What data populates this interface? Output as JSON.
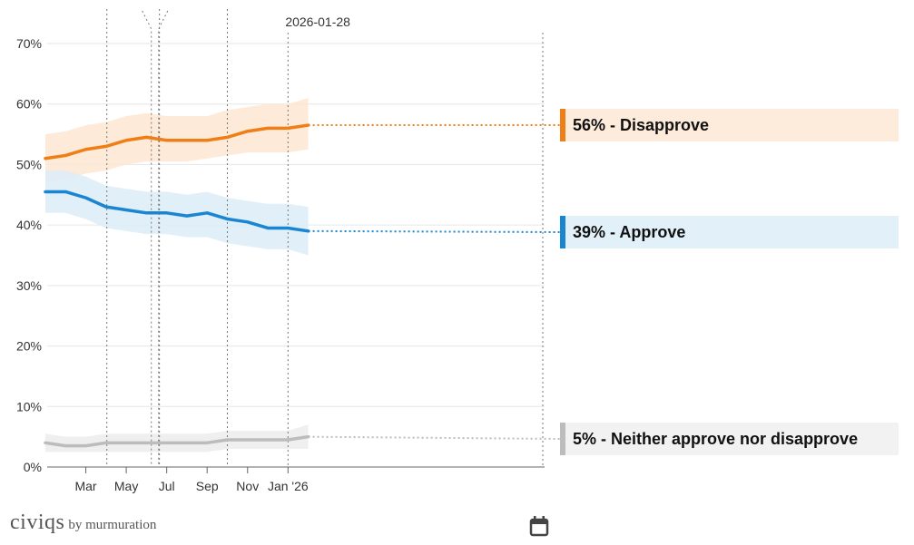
{
  "chart_data": {
    "type": "line",
    "title": "",
    "xlabel": "",
    "ylabel": "",
    "ylim": [
      0,
      70
    ],
    "yticks": [
      0,
      10,
      20,
      30,
      40,
      50,
      60,
      70
    ],
    "ytick_labels": [
      "0%",
      "10%",
      "20%",
      "30%",
      "40%",
      "50%",
      "60%",
      "70%"
    ],
    "xlim": [
      0,
      12.3
    ],
    "xticks": [
      {
        "pos": 1.0,
        "label": "Mar"
      },
      {
        "pos": 2.0,
        "label": "May"
      },
      {
        "pos": 3.0,
        "label": "Jul"
      },
      {
        "pos": 4.0,
        "label": "Sep"
      },
      {
        "pos": 5.0,
        "label": "Nov"
      },
      {
        "pos": 6.0,
        "label": "Jan '26"
      }
    ],
    "x_unit_note": "x positions are months since Feb 2025 divided by 2",
    "event_lines": [
      1.52,
      2.82,
      4.5
    ],
    "event_bracket": [
      2.62,
      2.8
    ],
    "current_date": {
      "pos": 6.0,
      "label": "2026-01-28"
    },
    "x": [
      0.0,
      0.5,
      1.0,
      1.5,
      2.0,
      2.5,
      3.0,
      3.5,
      4.0,
      4.5,
      5.0,
      5.5,
      6.0,
      6.5
    ],
    "series": [
      {
        "name": "Disapprove",
        "color": "#f07e16",
        "band_color": "#fde6d2",
        "values": [
          51,
          51.5,
          52.5,
          53,
          54,
          54.5,
          54,
          54,
          54,
          54.5,
          55.5,
          56,
          56,
          56.5
        ],
        "band_lower": [
          47,
          47.5,
          48.5,
          49,
          50,
          50.5,
          50.5,
          50.5,
          51,
          51.5,
          52,
          52,
          52,
          52.5
        ],
        "band_upper": [
          55,
          55.5,
          56.5,
          57,
          58,
          58.5,
          58,
          58,
          58,
          59,
          59.5,
          60,
          60,
          61
        ],
        "end_label": "56% - Disapprove"
      },
      {
        "name": "Approve",
        "color": "#1a85d1",
        "values": [
          45.5,
          45.5,
          44.5,
          43,
          42.5,
          42,
          42,
          41.5,
          42,
          41,
          40.5,
          39.5,
          39.5,
          39
        ],
        "band_lower": [
          42,
          42,
          41,
          39.5,
          39,
          38.5,
          38.5,
          38,
          38,
          37,
          36.5,
          36,
          36,
          35
        ],
        "band_upper": [
          49,
          49,
          48,
          46.5,
          46,
          45.5,
          45.5,
          45,
          45.5,
          44.5,
          44,
          43.5,
          43.5,
          43
        ],
        "band_color": "#dcecf8",
        "end_label": "39% - Approve"
      },
      {
        "name": "Neither approve nor disapprove",
        "color": "#bcbcbc",
        "band_color": "#ececec",
        "values": [
          4,
          3.5,
          3.5,
          4,
          4,
          4,
          4,
          4,
          4,
          4.5,
          4.5,
          4.5,
          4.5,
          5
        ],
        "band_lower": [
          2.5,
          2.5,
          2.5,
          2.5,
          2.5,
          2.5,
          2.5,
          2.5,
          2.5,
          3,
          3,
          3,
          3,
          3
        ],
        "band_upper": [
          5.5,
          5,
          5,
          5.5,
          5.5,
          5.5,
          5.5,
          5.5,
          5.5,
          6,
          6,
          6,
          6,
          7
        ],
        "end_label": "5% - Neither approve nor disapprove"
      }
    ]
  },
  "brand": {
    "name": "civiqs",
    "suffix": "by murmuration"
  },
  "icons": {
    "calendar": "calendar-icon"
  }
}
